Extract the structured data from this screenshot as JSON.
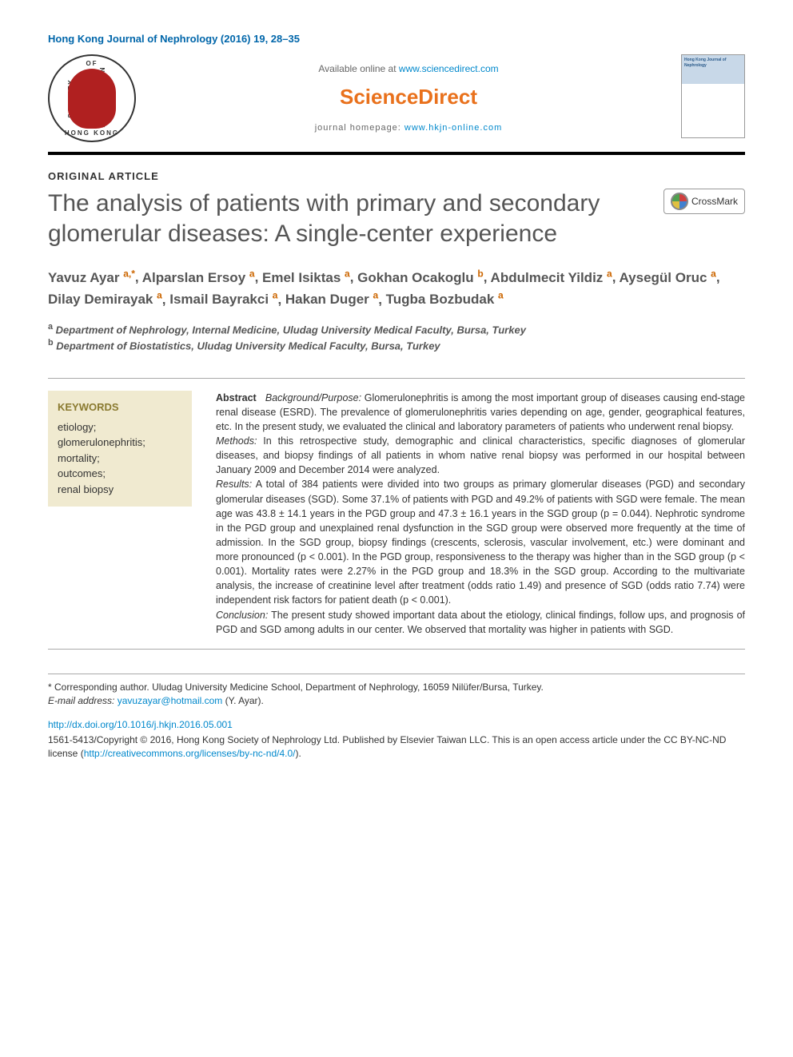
{
  "journal_header": "Hong Kong Journal of Nephrology (2016) 19, 28–35",
  "top": {
    "society_logo": {
      "top_text": "OF",
      "left_text": "SOCIETY",
      "right_text": "NEPHROLOGY",
      "bottom_text": "HONG KONG"
    },
    "available_prefix": "Available online at ",
    "available_link": "www.sciencedirect.com",
    "brand": "ScienceDirect",
    "homepage_prefix": "journal homepage: ",
    "homepage_link": "www.hkjn-online.com",
    "cover_title": "Hong Kong Journal of Nephrology"
  },
  "article_type": "ORIGINAL ARTICLE",
  "title": "The analysis of patients with primary and secondary glomerular diseases: A single-center experience",
  "crossmark_label": "CrossMark",
  "authors": [
    {
      "name": "Yavuz Ayar",
      "aff": "a",
      "corr": true
    },
    {
      "name": "Alparslan Ersoy",
      "aff": "a"
    },
    {
      "name": "Emel Isiktas",
      "aff": "a"
    },
    {
      "name": "Gokhan Ocakoglu",
      "aff": "b"
    },
    {
      "name": "Abdulmecit Yildiz",
      "aff": "a"
    },
    {
      "name": "Aysegül Oruc",
      "aff": "a"
    },
    {
      "name": "Dilay Demirayak",
      "aff": "a"
    },
    {
      "name": "Ismail Bayrakci",
      "aff": "a"
    },
    {
      "name": "Hakan Duger",
      "aff": "a"
    },
    {
      "name": "Tugba Bozbudak",
      "aff": "a"
    }
  ],
  "affiliations": {
    "a": "Department of Nephrology, Internal Medicine, Uludag University Medical Faculty, Bursa, Turkey",
    "b": "Department of Biostatistics, Uludag University Medical Faculty, Bursa, Turkey"
  },
  "keywords": {
    "heading": "KEYWORDS",
    "items": [
      "etiology;",
      "glomerulonephritis;",
      "mortality;",
      "outcomes;",
      "renal biopsy"
    ]
  },
  "abstract": {
    "lead": "Abstract",
    "bg_label": "Background/Purpose:",
    "bg_text": " Glomerulonephritis is among the most important group of diseases causing end-stage renal disease (ESRD). The prevalence of glomerulonephritis varies depending on age, gender, geographical features, etc. In the present study, we evaluated the clinical and laboratory parameters of patients who underwent renal biopsy.",
    "methods_label": "Methods:",
    "methods_text": " In this retrospective study, demographic and clinical characteristics, specific diagnoses of glomerular diseases, and biopsy findings of all patients in whom native renal biopsy was performed in our hospital between January 2009 and December 2014 were analyzed.",
    "results_label": "Results:",
    "results_text": " A total of 384 patients were divided into two groups as primary glomerular diseases (PGD) and secondary glomerular diseases (SGD). Some 37.1% of patients with PGD and 49.2% of patients with SGD were female. The mean age was 43.8 ± 14.1 years in the PGD group and 47.3 ± 16.1 years in the SGD group (p = 0.044). Nephrotic syndrome in the PGD group and unexplained renal dysfunction in the SGD group were observed more frequently at the time of admission. In the SGD group, biopsy findings (crescents, sclerosis, vascular involvement, etc.) were dominant and more pronounced (p < 0.001). In the PGD group, responsiveness to the therapy was higher than in the SGD group (p < 0.001). Mortality rates were 2.27% in the PGD group and 18.3% in the SGD group. According to the multivariate analysis, the increase of creatinine level after treatment (odds ratio 1.49) and presence of SGD (odds ratio 7.74) were independent risk factors for patient death (p < 0.001).",
    "conclusion_label": "Conclusion:",
    "conclusion_text": " The present study showed important data about the etiology, clinical findings, follow ups, and prognosis of PGD and SGD among adults in our center. We observed that mortality was higher in patients with SGD."
  },
  "footer": {
    "corr_text": "* Corresponding author. Uludag University Medicine School, Department of Nephrology, 16059 Nilüfer/Bursa, Turkey.",
    "email_label": "E-mail address:",
    "email_link": "yavuzayar@hotmail.com",
    "email_suffix": " (Y. Ayar).",
    "doi": "http://dx.doi.org/10.1016/j.hkjn.2016.05.001",
    "copyright_prefix": "1561-5413/Copyright © 2016, Hong Kong Society of Nephrology Ltd. Published by Elsevier Taiwan LLC. This is an open access article under the CC BY-NC-ND license (",
    "license_link": "http://creativecommons.org/licenses/by-nc-nd/4.0/",
    "copyright_suffix": ")."
  },
  "colors": {
    "link": "#0088cc",
    "brand_orange": "#e9711c",
    "aff_sup": "#cc6600",
    "keywords_bg": "#f0ead0",
    "keywords_heading": "#8a7a30",
    "title_gray": "#555555",
    "rule": "#000000"
  },
  "typography": {
    "title_fontsize": 30,
    "authors_fontsize": 17,
    "body_fontsize": 13,
    "abstract_fontsize": 12.5,
    "brand_fontsize": 26
  }
}
